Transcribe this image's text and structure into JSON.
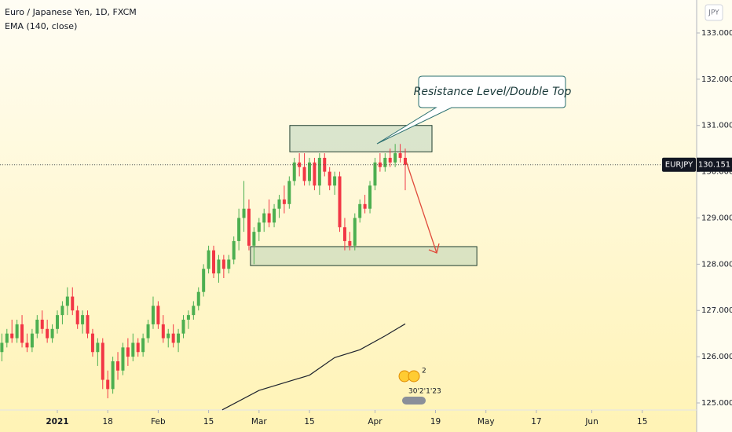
{
  "chart_data": {
    "type": "candlestick",
    "title": "Euro / Japanese Yen, 1D, FXCM",
    "currency": "JPY",
    "up_color": "#4caf50",
    "down_color": "#f23645",
    "x": [
      -11,
      -10,
      -9,
      -8,
      -7,
      -6,
      -5,
      -4,
      -3,
      -2,
      -1,
      0,
      1,
      2,
      3,
      4,
      5,
      6,
      7,
      8,
      9,
      10,
      11,
      12,
      13,
      14,
      15,
      16,
      17,
      18,
      19,
      20,
      21,
      22,
      23,
      24,
      25,
      26,
      27,
      28,
      29,
      30,
      31,
      32,
      33,
      34,
      35,
      36,
      37,
      38,
      39,
      40,
      41,
      42,
      43,
      44,
      45,
      46,
      47,
      48,
      49,
      50,
      51,
      52,
      53,
      54,
      55,
      56,
      57,
      58,
      59,
      60,
      61,
      62,
      63,
      64,
      65,
      66,
      67,
      68,
      69
    ],
    "open": [
      126.1,
      126.3,
      126.5,
      126.4,
      126.7,
      126.3,
      126.2,
      126.5,
      126.8,
      126.6,
      126.4,
      126.6,
      126.9,
      127.1,
      127.3,
      127.0,
      126.7,
      126.9,
      126.5,
      126.1,
      126.3,
      125.5,
      125.3,
      125.9,
      125.7,
      126.2,
      126.0,
      126.3,
      126.1,
      126.4,
      126.7,
      127.1,
      126.7,
      126.4,
      126.5,
      126.3,
      126.5,
      126.8,
      126.9,
      127.1,
      127.4,
      127.9,
      128.3,
      127.8,
      128.1,
      127.9,
      128.1,
      128.5,
      129.0,
      129.2,
      128.4,
      128.7,
      128.9,
      129.1,
      128.9,
      129.2,
      129.4,
      129.3,
      129.8,
      130.2,
      130.1,
      129.8,
      130.2,
      129.7,
      130.3,
      130.0,
      129.7,
      129.9,
      128.8,
      128.5,
      128.4,
      129.0,
      129.3,
      129.2,
      129.7,
      130.2,
      130.1,
      130.3,
      130.2,
      130.4,
      130.3
    ],
    "high": [
      126.5,
      126.6,
      126.8,
      126.8,
      126.9,
      126.5,
      126.6,
      126.9,
      127.0,
      126.8,
      126.7,
      127.0,
      127.2,
      127.5,
      127.5,
      127.1,
      127.0,
      127.0,
      126.6,
      126.4,
      126.4,
      125.7,
      126.0,
      126.1,
      126.3,
      126.4,
      126.5,
      126.4,
      126.5,
      126.8,
      127.3,
      127.2,
      126.9,
      126.6,
      126.7,
      126.6,
      126.9,
      127.0,
      127.2,
      127.5,
      128.0,
      128.4,
      128.4,
      128.2,
      128.2,
      128.2,
      128.6,
      129.2,
      129.8,
      129.4,
      128.8,
      129.0,
      129.2,
      129.4,
      129.3,
      129.5,
      129.7,
      129.9,
      130.3,
      130.4,
      130.4,
      130.3,
      130.3,
      130.4,
      130.4,
      130.1,
      130.0,
      130.0,
      129.0,
      128.7,
      129.1,
      129.4,
      129.5,
      129.8,
      130.3,
      130.4,
      130.4,
      130.5,
      130.6,
      130.6,
      130.5
    ],
    "low": [
      125.9,
      126.2,
      126.3,
      126.3,
      126.2,
      126.1,
      126.1,
      126.4,
      126.5,
      126.3,
      126.3,
      126.5,
      126.7,
      126.9,
      126.9,
      126.6,
      126.5,
      126.4,
      126.0,
      125.8,
      125.3,
      125.1,
      125.2,
      125.5,
      125.6,
      125.8,
      125.9,
      126.0,
      126.0,
      126.3,
      126.6,
      126.6,
      126.3,
      126.2,
      126.2,
      126.1,
      126.4,
      126.6,
      126.8,
      127.0,
      127.3,
      127.8,
      127.7,
      127.6,
      127.7,
      127.8,
      128.0,
      128.3,
      128.7,
      128.3,
      128.0,
      128.5,
      128.7,
      128.8,
      128.8,
      129.0,
      129.1,
      129.2,
      129.7,
      129.9,
      129.7,
      129.7,
      129.6,
      129.5,
      129.9,
      129.6,
      129.5,
      128.7,
      128.3,
      128.3,
      128.3,
      128.9,
      129.1,
      129.1,
      129.6,
      130.0,
      130.0,
      130.1,
      130.1,
      130.2,
      129.6
    ],
    "close": [
      126.3,
      126.5,
      126.4,
      126.7,
      126.3,
      126.2,
      126.5,
      126.8,
      126.6,
      126.4,
      126.6,
      126.9,
      127.1,
      127.3,
      127.0,
      126.7,
      126.9,
      126.5,
      126.1,
      126.3,
      125.5,
      125.3,
      125.9,
      125.7,
      126.2,
      126.0,
      126.3,
      126.1,
      126.4,
      126.7,
      127.1,
      126.7,
      126.4,
      126.5,
      126.3,
      126.5,
      126.8,
      126.9,
      127.1,
      127.4,
      127.9,
      128.3,
      127.8,
      128.1,
      127.9,
      128.1,
      128.5,
      129.0,
      129.2,
      128.4,
      128.7,
      128.9,
      129.1,
      128.9,
      129.2,
      129.4,
      129.3,
      129.8,
      130.2,
      130.1,
      129.8,
      130.2,
      129.7,
      130.3,
      130.0,
      129.7,
      129.9,
      128.8,
      128.5,
      128.4,
      129.0,
      129.3,
      129.2,
      129.7,
      130.2,
      130.1,
      130.3,
      130.2,
      130.4,
      130.3,
      130.151
    ],
    "ema": {
      "name": "EMA (140, close)",
      "color": "#1e222d",
      "x": [
        32.7,
        40,
        50,
        55,
        60,
        65,
        69
      ],
      "values": [
        124.85,
        125.27,
        125.6,
        125.98,
        126.15,
        126.45,
        126.71
      ]
    },
    "last_price": {
      "symbol": "EURJPY",
      "value": 130.151
    },
    "zones": [
      {
        "x": [
          46.1,
          74.3
        ],
        "y": [
          130.43,
          131.0
        ]
      },
      {
        "x": [
          38.3,
          83.2
        ],
        "y": [
          127.97,
          128.38
        ]
      }
    ],
    "annotation": "Resistance Level/Double Top",
    "overlay_texts": [
      "2",
      "30'2'1'23"
    ],
    "xlim": [
      -11.37,
      126.79
    ],
    "ylim": [
      124.847,
      133.713
    ],
    "yticks": [
      {
        "value": 125,
        "label": "125.000"
      },
      {
        "value": 126,
        "label": "126.000"
      },
      {
        "value": 127,
        "label": "127.000"
      },
      {
        "value": 128,
        "label": "128.000"
      },
      {
        "value": 129,
        "label": "129.000"
      },
      {
        "value": 130,
        "label": "130.000"
      },
      {
        "value": 131,
        "label": "131.000"
      },
      {
        "value": 132,
        "label": "132.000"
      },
      {
        "value": 133,
        "label": "133.000"
      }
    ],
    "xticks": [
      {
        "value": 0,
        "label": "2021"
      },
      {
        "value": 10,
        "label": "18"
      },
      {
        "value": 20,
        "label": "Feb"
      },
      {
        "value": 30,
        "label": "15"
      },
      {
        "value": 40,
        "label": "Mar"
      },
      {
        "value": 50,
        "label": "15"
      },
      {
        "value": 63,
        "label": "Apr"
      },
      {
        "value": 75,
        "label": "19"
      },
      {
        "value": 85,
        "label": "May"
      },
      {
        "value": 95,
        "label": "17"
      },
      {
        "value": 106,
        "label": "Jun"
      },
      {
        "value": 116,
        "label": "15"
      }
    ]
  }
}
